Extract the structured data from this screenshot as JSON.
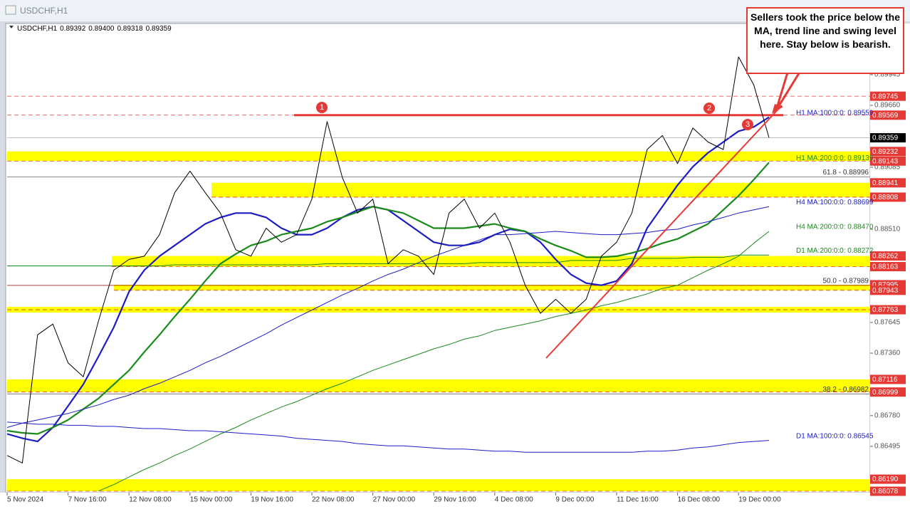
{
  "chart_data": {
    "type": "line",
    "title": "USDCHF,H1",
    "quote": {
      "open": 0.89392,
      "high": {
        "value": 0.894,
        "label": "0.89400"
      },
      "low": 0.89318,
      "close": 0.89359
    },
    "categories": [
      "5 Nov 2024",
      null,
      null,
      null,
      "7 Nov 16:00",
      null,
      null,
      null,
      "12 Nov 08:00",
      null,
      null,
      null,
      "15 Nov 00:00",
      null,
      null,
      null,
      "19 Nov 16:00",
      null,
      null,
      null,
      "22 Nov 08:00",
      null,
      null,
      null,
      "27 Nov 00:00",
      null,
      null,
      null,
      "29 Nov 16:00",
      null,
      null,
      null,
      "4 Dec 08:00",
      null,
      null,
      null,
      "9 Dec 00:00",
      null,
      null,
      null,
      "11 Dec 16:00",
      null,
      null,
      null,
      "16 Dec 08:00",
      null,
      null,
      null,
      "19 Dec 00:00",
      null,
      null
    ],
    "values": [
      0.8641,
      0.8634,
      0.8753,
      0.8763,
      0.8727,
      0.8714,
      0.8766,
      0.8813,
      0.8823,
      0.8826,
      0.8846,
      0.8885,
      0.8905,
      0.8885,
      0.8866,
      0.8832,
      0.8826,
      0.8852,
      0.8839,
      0.8846,
      0.8879,
      0.8951,
      0.8899,
      0.8866,
      0.8879,
      0.8819,
      0.8832,
      0.8826,
      0.8809,
      0.8866,
      0.8879,
      0.8852,
      0.8866,
      0.8839,
      0.8799,
      0.8773,
      0.8786,
      0.8773,
      0.8786,
      0.8826,
      0.8839,
      0.8866,
      0.8925,
      0.8938,
      0.8912,
      0.8945,
      0.8932,
      0.8925,
      0.9011,
      0.8985,
      0.8936
    ],
    "color": "#000000",
    "series": [
      {
        "name": "H1 MA:100:0:0: 0.89559",
        "color": "#1c1cc4",
        "line_width": 2.2,
        "values": [
          0.8661,
          0.8657,
          0.8654,
          0.8667,
          0.8687,
          0.8707,
          0.8733,
          0.876,
          0.8793,
          0.8813,
          0.8826,
          0.8836,
          0.8846,
          0.8856,
          0.8862,
          0.8866,
          0.8866,
          0.8862,
          0.8852,
          0.8846,
          0.8846,
          0.8852,
          0.8862,
          0.8869,
          0.8872,
          0.8869,
          0.8859,
          0.8849,
          0.8839,
          0.8836,
          0.8836,
          0.8839,
          0.8846,
          0.8851,
          0.8849,
          0.8839,
          0.8823,
          0.8809,
          0.8801,
          0.8799,
          0.8803,
          0.8819,
          0.8852,
          0.8872,
          0.8892,
          0.8909,
          0.8922,
          0.8932,
          0.8942,
          0.8946,
          0.8955
        ]
      },
      {
        "name": "H1 MA:200:0:0: 0.89139",
        "color": "#1a8a1a",
        "line_width": 2.2,
        "values": [
          0.8664,
          0.8662,
          0.8661,
          0.8667,
          0.8674,
          0.8684,
          0.8694,
          0.8707,
          0.872,
          0.8737,
          0.8753,
          0.877,
          0.8786,
          0.8803,
          0.8819,
          0.8828,
          0.8836,
          0.884,
          0.8846,
          0.8849,
          0.8852,
          0.8858,
          0.8862,
          0.8867,
          0.8872,
          0.8869,
          0.8866,
          0.8859,
          0.8852,
          0.8852,
          0.8852,
          0.8854,
          0.8856,
          0.8852,
          0.8849,
          0.8842,
          0.8836,
          0.8831,
          0.8825,
          0.8825,
          0.8826,
          0.8829,
          0.8833,
          0.8838,
          0.8842,
          0.8849,
          0.8856,
          0.8869,
          0.8882,
          0.8897,
          0.8913
        ]
      },
      {
        "name": "H4 MA:100:0:0: 0.88699",
        "color": "#1c1cc4",
        "line_width": 1,
        "values": [
          0.8667,
          0.8671,
          0.8674,
          0.8677,
          0.868,
          0.8684,
          0.8688,
          0.8693,
          0.8697,
          0.8703,
          0.8708,
          0.8714,
          0.872,
          0.8727,
          0.8733,
          0.874,
          0.8747,
          0.8754,
          0.8762,
          0.8769,
          0.8776,
          0.8783,
          0.879,
          0.8796,
          0.8803,
          0.8809,
          0.8814,
          0.882,
          0.8826,
          0.8831,
          0.8836,
          0.8841,
          0.8846,
          0.8846,
          0.8847,
          0.8848,
          0.8849,
          0.8848,
          0.8847,
          0.8846,
          0.8846,
          0.8847,
          0.8848,
          0.885,
          0.8851,
          0.8855,
          0.8858,
          0.8862,
          0.8866,
          0.8869,
          0.8872
        ]
      },
      {
        "name": "H4 MA:200:0:0: 0.88470",
        "color": "#1a8a1a",
        "line_width": 1,
        "values": [
          null,
          null,
          null,
          null,
          null,
          null,
          0.8608,
          0.8614,
          0.8621,
          0.8628,
          0.8634,
          0.8641,
          0.8647,
          0.8654,
          0.8661,
          0.8667,
          0.8674,
          0.868,
          0.8686,
          0.8691,
          0.8697,
          0.8703,
          0.8708,
          0.8714,
          0.872,
          0.8725,
          0.873,
          0.8735,
          0.874,
          0.8744,
          0.8749,
          0.8752,
          0.8757,
          0.876,
          0.8763,
          0.8766,
          0.877,
          0.8773,
          0.8776,
          0.878,
          0.8783,
          0.8787,
          0.8791,
          0.8796,
          0.8799,
          0.8806,
          0.8813,
          0.8819,
          0.8826,
          0.8838,
          0.8849
        ]
      },
      {
        "name": "D1 MA:200:0:0: 0.88272",
        "color": "#1a8a1a",
        "line_width": 1,
        "values": [
          0.8817,
          0.8817,
          0.8817,
          0.8817,
          0.8817,
          0.8817,
          0.8817,
          0.8817,
          0.8817,
          0.8817,
          0.8817,
          0.8818,
          0.8818,
          0.8818,
          0.8818,
          0.8818,
          0.8818,
          0.8818,
          0.8818,
          0.8818,
          0.8818,
          0.8819,
          0.8819,
          0.8819,
          0.8819,
          0.8819,
          0.8819,
          0.8819,
          0.8819,
          0.8819,
          0.8819,
          0.882,
          0.882,
          0.882,
          0.882,
          0.882,
          0.882,
          0.8822,
          0.8822,
          0.8822,
          0.8822,
          0.8824,
          0.8824,
          0.8824,
          0.8824,
          0.8825,
          0.8825,
          0.8825,
          0.8827,
          0.8827,
          0.8827
        ]
      },
      {
        "name": "D1 MA:100:0:0: 0.86545",
        "color": "#1c1cc4",
        "line_width": 1,
        "values": [
          0.8672,
          0.8671,
          0.867,
          0.867,
          0.8669,
          0.8669,
          0.8668,
          0.8668,
          0.8667,
          0.8666,
          0.8666,
          0.8665,
          0.8664,
          0.8664,
          0.8663,
          0.8662,
          0.8661,
          0.866,
          0.8659,
          0.8657,
          0.8656,
          0.8655,
          0.8654,
          0.8652,
          0.8651,
          0.865,
          0.865,
          0.8649,
          0.8648,
          0.8647,
          0.8647,
          0.8646,
          0.8645,
          0.8645,
          0.8644,
          0.8644,
          0.8644,
          0.8644,
          0.8644,
          0.8644,
          0.8644,
          0.8644,
          0.8645,
          0.8645,
          0.8646,
          0.8648,
          0.8649,
          0.8651,
          0.8653,
          0.8654,
          0.8655
        ]
      }
    ],
    "ylim": [
      0.86065,
      0.9042
    ],
    "yticks": [
      0.89945,
      {
        "value": 0.8966,
        "label": "0.89660"
      },
      0.89085,
      {
        "value": 0.8851,
        "label": "0.88510"
      },
      0.87645,
      {
        "value": 0.8736,
        "label": "0.87360"
      },
      {
        "value": 0.8678,
        "label": "0.86780"
      },
      0.86495
    ],
    "grid": false,
    "levels": [
      0.89745,
      0.89569,
      0.87763
    ],
    "zones": [
      {
        "high": 0.89232,
        "low": 0.89143
      },
      {
        "high": 0.88941,
        "low": 0.88808
      },
      {
        "high": 0.88262,
        "low": 0.88163
      },
      {
        "high": 0.87995,
        "low": 0.87943
      },
      {
        "high": 0.87116,
        "low": 0.86999
      },
      {
        "high": {
          "value": 0.8619,
          "label": "0.86190"
        },
        "low": 0.86078
      }
    ],
    "fib_levels": [
      {
        "label": "61.8 - 0.88996",
        "value": 0.88996
      },
      {
        "label": "50.0 - 0.87989",
        "value": 0.87989
      },
      {
        "label": "38.2 - 0.86982",
        "value": 0.86982
      }
    ],
    "annotations": {
      "callout": "Sellers took the price below the MA, trend line and swing level here. Stay below is bearish.",
      "markers": [
        "1",
        "2",
        "3"
      ]
    }
  }
}
